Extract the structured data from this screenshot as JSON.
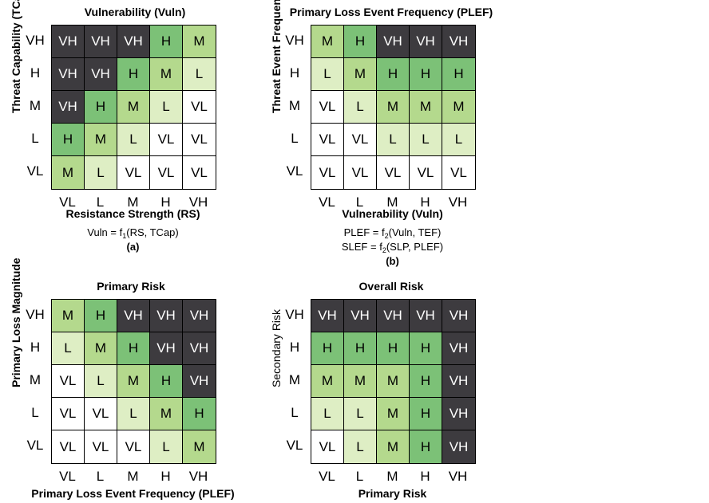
{
  "colors": {
    "VH": "#3d3b3f",
    "H": "#7cc177",
    "M": "#b4d98d",
    "L": "#deeec4",
    "VL": "#ffffff"
  },
  "levels_y": [
    "VH",
    "H",
    "M",
    "L",
    "VL"
  ],
  "levels_x": [
    "VL",
    "L",
    "M",
    "H",
    "VH"
  ],
  "panels": [
    {
      "title": "Vulnerability (Vuln)",
      "y_title": "Threat Capability (TCap)",
      "x_title": "Resistance Strength (RS)",
      "formula1": {
        "pre": "Vuln = f",
        "sub": "1",
        "post": "(RS, TCap)"
      },
      "formula2": null,
      "caption": "(a)",
      "grid": [
        [
          "VH",
          "VH",
          "VH",
          "H",
          "M"
        ],
        [
          "VH",
          "VH",
          "H",
          "M",
          "L"
        ],
        [
          "VH",
          "H",
          "M",
          "L",
          "VL"
        ],
        [
          "H",
          "M",
          "L",
          "VL",
          "VL"
        ],
        [
          "M",
          "L",
          "VL",
          "VL",
          "VL"
        ]
      ]
    },
    {
      "title": "Primary Loss Event Frequency (PLEF)",
      "y_title": "Threat Event Frequency (TEF)",
      "x_title": "Vulnerability (Vuln)",
      "formula1": {
        "pre": "PLEF = f",
        "sub": "2",
        "post": "(Vuln, TEF)"
      },
      "formula2": {
        "pre": "SLEF = f",
        "sub": "2",
        "post": "(SLP, PLEF)"
      },
      "caption": "(b)",
      "grid": [
        [
          "M",
          "H",
          "VH",
          "VH",
          "VH"
        ],
        [
          "L",
          "M",
          "H",
          "H",
          "H"
        ],
        [
          "VL",
          "L",
          "M",
          "M",
          "M"
        ],
        [
          "VL",
          "VL",
          "L",
          "L",
          "L"
        ],
        [
          "VL",
          "VL",
          "VL",
          "VL",
          "VL"
        ]
      ]
    },
    {
      "title": "Primary Risk",
      "y_title": "Primary Loss Magnitude",
      "x_title": "Primary Loss Event Frequency (PLEF)",
      "formula1": null,
      "formula2": null,
      "caption": "",
      "grid": [
        [
          "M",
          "H",
          "VH",
          "VH",
          "VH"
        ],
        [
          "L",
          "M",
          "H",
          "VH",
          "VH"
        ],
        [
          "VL",
          "L",
          "M",
          "H",
          "VH"
        ],
        [
          "VL",
          "VL",
          "L",
          "M",
          "H"
        ],
        [
          "VL",
          "VL",
          "VL",
          "L",
          "M"
        ]
      ]
    },
    {
      "title": "Overall Risk",
      "y_title": "Secondary Risk",
      "x_title": "Primary Risk",
      "formula1": null,
      "formula2": null,
      "caption": "",
      "grid": [
        [
          "VH",
          "VH",
          "VH",
          "VH",
          "VH"
        ],
        [
          "H",
          "H",
          "H",
          "H",
          "VH"
        ],
        [
          "M",
          "M",
          "M",
          "H",
          "VH"
        ],
        [
          "L",
          "L",
          "M",
          "H",
          "VH"
        ],
        [
          "VL",
          "L",
          "M",
          "H",
          "VH"
        ]
      ]
    }
  ]
}
